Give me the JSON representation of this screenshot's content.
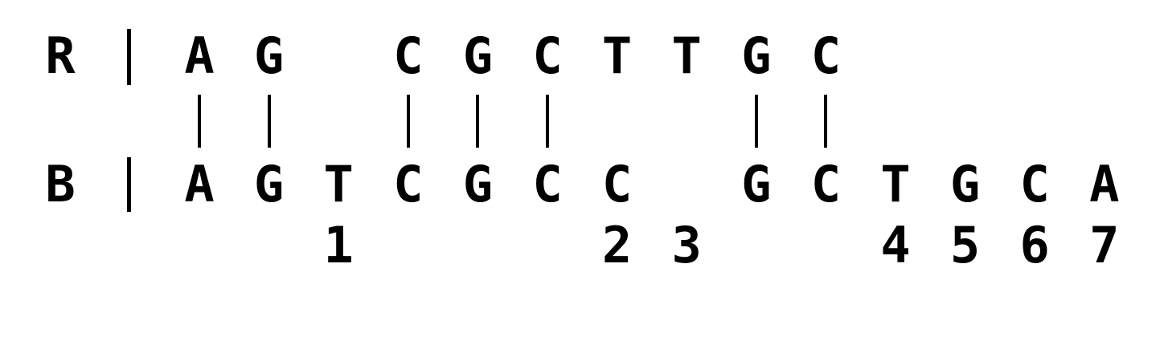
{
  "alignment": {
    "row_r": {
      "label": "R",
      "cells": [
        "A",
        "G",
        "",
        "C",
        "G",
        "C",
        "T",
        "T",
        "G",
        "C",
        "",
        "",
        "",
        ""
      ]
    },
    "row_b": {
      "label": "B",
      "cells": [
        "A",
        "G",
        "T",
        "C",
        "G",
        "C",
        "C",
        "",
        "G",
        "C",
        "T",
        "G",
        "C",
        "A"
      ]
    },
    "matches": [
      true,
      true,
      false,
      true,
      true,
      true,
      false,
      false,
      true,
      true,
      false,
      false,
      false,
      false
    ],
    "difference_numbers": [
      "",
      "",
      "1",
      "",
      "",
      "",
      "2",
      "3",
      "",
      "",
      "4",
      "5",
      "6",
      "7"
    ]
  },
  "colors": {
    "ink": "#000000",
    "background": "#ffffff"
  }
}
